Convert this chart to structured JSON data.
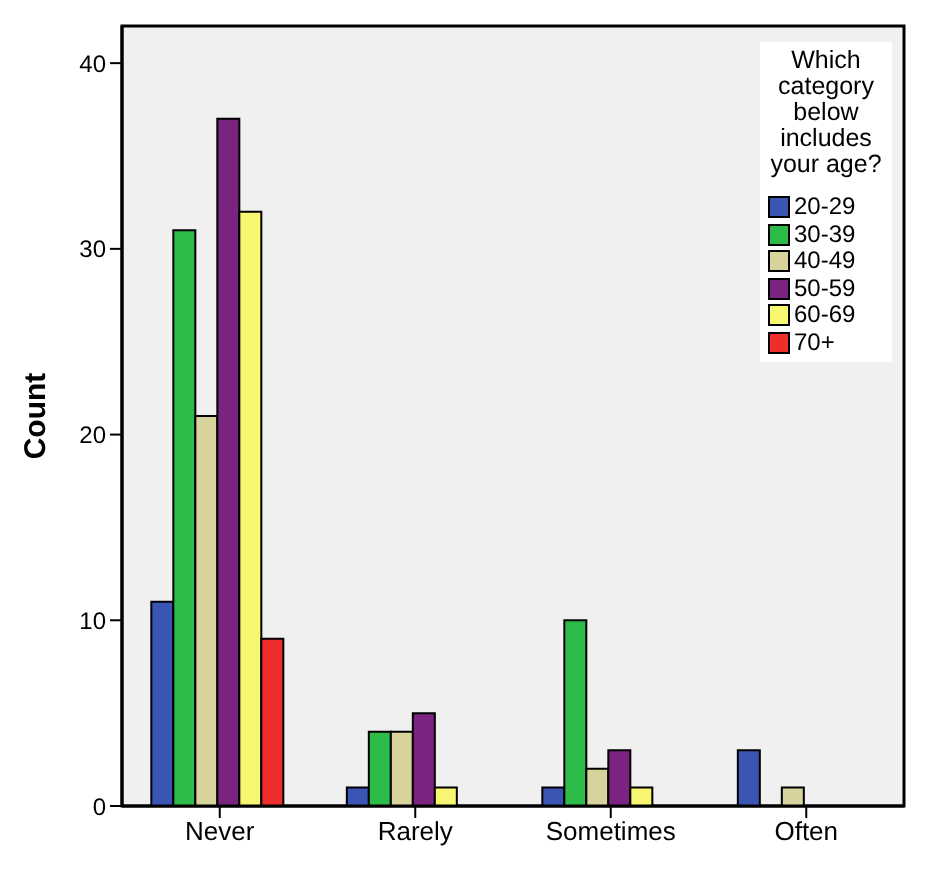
{
  "chart_data": {
    "type": "bar",
    "ylabel": "Count",
    "legend_title": "Which category below includes your age?",
    "categories": [
      "Never",
      "Rarely",
      "Sometimes",
      "Often"
    ],
    "series": [
      {
        "name": "20-29",
        "color": "#3a55b4",
        "values": [
          11,
          1,
          1,
          3
        ]
      },
      {
        "name": "30-39",
        "color": "#2dbb4a",
        "values": [
          31,
          4,
          10,
          null
        ]
      },
      {
        "name": "40-49",
        "color": "#d8d29c",
        "values": [
          21,
          4,
          2,
          1
        ]
      },
      {
        "name": "50-59",
        "color": "#7a2381",
        "values": [
          37,
          5,
          3,
          null
        ]
      },
      {
        "name": "60-69",
        "color": "#f7f771",
        "values": [
          32,
          1,
          1,
          null
        ]
      },
      {
        "name": "70+",
        "color": "#ee2d2d",
        "values": [
          9,
          null,
          null,
          null
        ]
      }
    ],
    "ylim": [
      0,
      42
    ],
    "yticks": [
      0,
      10,
      20,
      30,
      40
    ],
    "legend": "top right"
  }
}
